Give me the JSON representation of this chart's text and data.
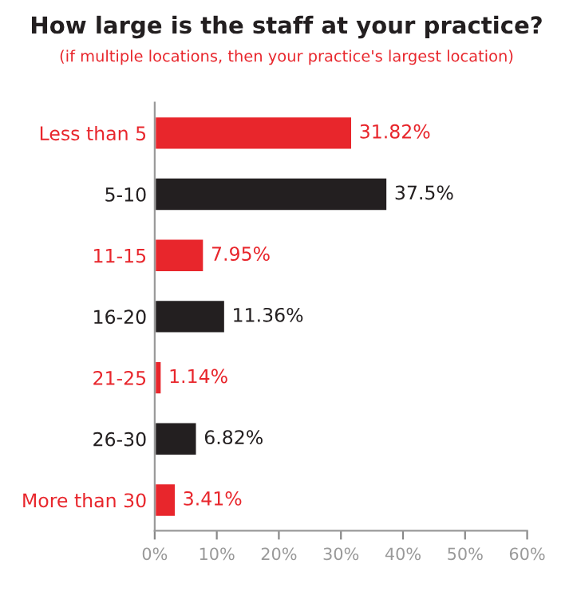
{
  "chart_data": {
    "type": "bar",
    "orientation": "horizontal",
    "title": "How large is the staff at your practice?",
    "subtitle": "(if multiple locations, then your practice's largest location)",
    "categories": [
      "Less than 5",
      "5-10",
      "11-15",
      "16-20",
      "21-25",
      "26-30",
      "More than 30"
    ],
    "values": [
      31.82,
      37.5,
      7.95,
      11.36,
      1.14,
      6.82,
      3.41
    ],
    "colors": [
      "#e8262c",
      "#231f20",
      "#e8262c",
      "#231f20",
      "#e8262c",
      "#231f20",
      "#e8262c"
    ],
    "value_labels": [
      "31.82%",
      "37.5%",
      "7.95%",
      "11.36%",
      "1.14%",
      "6.82%",
      "3.41%"
    ],
    "xlim": [
      0,
      60
    ],
    "xticks": [
      {
        "value": 0,
        "label": "0%"
      },
      {
        "value": 10,
        "label": "10%"
      },
      {
        "value": 20,
        "label": "20%"
      },
      {
        "value": 30,
        "label": "30%"
      },
      {
        "value": 40,
        "label": "40%"
      },
      {
        "value": 50,
        "label": "50%"
      },
      {
        "value": 60,
        "label": "60%"
      }
    ],
    "grid": false
  }
}
